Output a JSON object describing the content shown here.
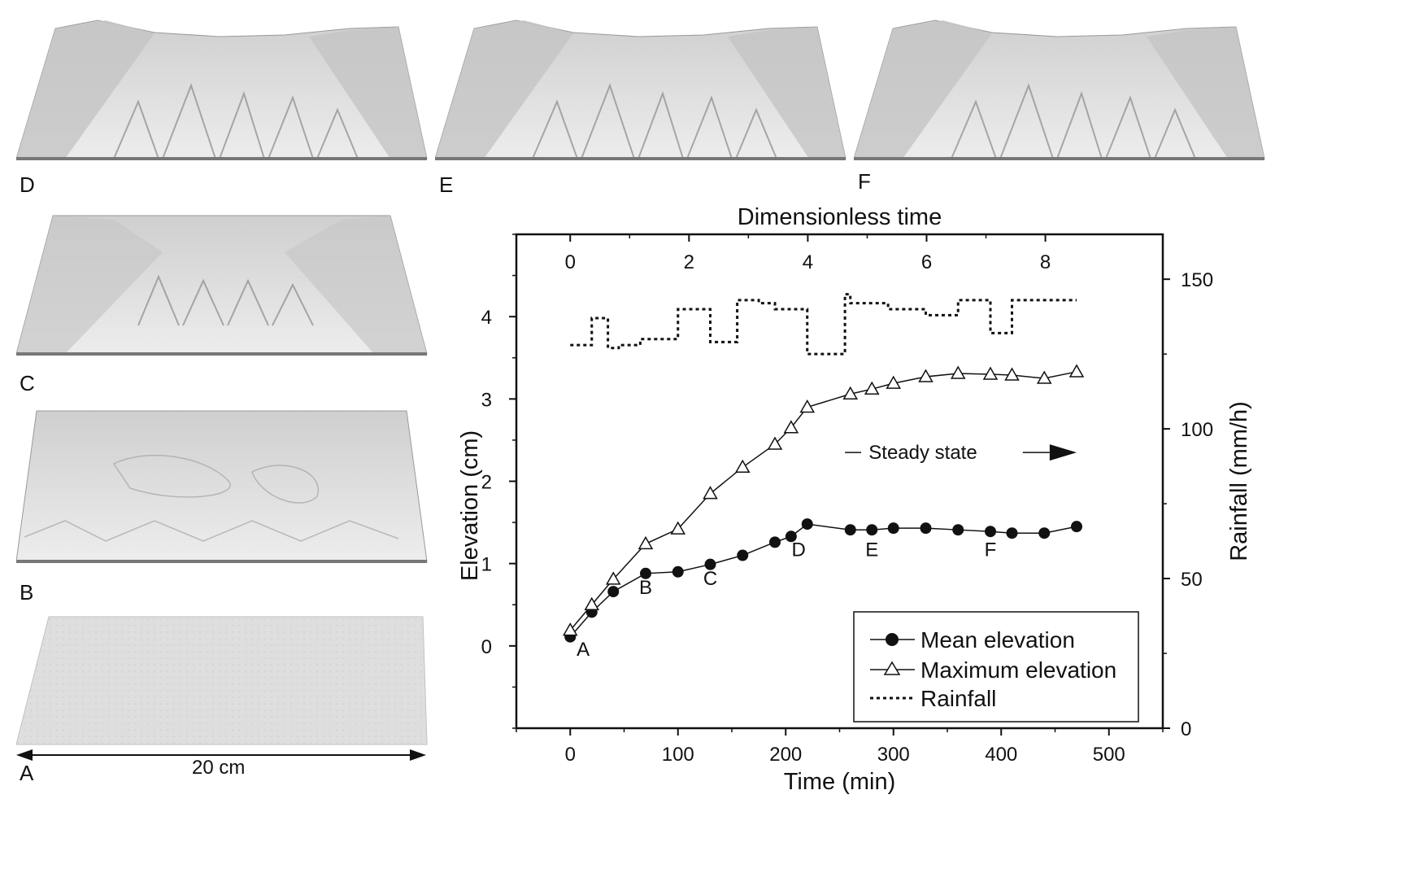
{
  "panels": {
    "labels": [
      "A",
      "B",
      "C",
      "D",
      "E",
      "F"
    ],
    "scale_bar": "20 cm"
  },
  "chart_data": {
    "type": "line",
    "title": "",
    "top_axis_label": "Dimensionless time",
    "top_ticks": [
      0,
      2,
      4,
      6,
      8
    ],
    "xlabel": "Time (min)",
    "ylabel": "Elevation (cm)",
    "y2label": "Rainfall (mm/h)",
    "xlim": [
      -50,
      550
    ],
    "ylim": [
      -1,
      5
    ],
    "y2lim": [
      0,
      165
    ],
    "xticks": [
      0,
      100,
      200,
      300,
      400,
      500
    ],
    "yticks": [
      0,
      1,
      2,
      3,
      4
    ],
    "y2ticks": [
      0,
      50,
      100,
      150
    ],
    "series": [
      {
        "name": "Mean elevation",
        "marker": "filled-circle",
        "x": [
          0,
          20,
          40,
          70,
          100,
          130,
          160,
          190,
          205,
          220,
          260,
          280,
          300,
          330,
          360,
          390,
          410,
          440,
          470
        ],
        "y": [
          0.11,
          0.41,
          0.66,
          0.88,
          0.9,
          0.99,
          1.1,
          1.26,
          1.33,
          1.48,
          1.41,
          1.41,
          1.43,
          1.43,
          1.41,
          1.39,
          1.37,
          1.37,
          1.45
        ]
      },
      {
        "name": "Maximum elevation",
        "marker": "open-triangle",
        "x": [
          0,
          20,
          40,
          70,
          100,
          130,
          160,
          190,
          205,
          220,
          260,
          280,
          300,
          330,
          360,
          390,
          410,
          440,
          470
        ],
        "y": [
          0.19,
          0.5,
          0.81,
          1.24,
          1.42,
          1.85,
          2.17,
          2.45,
          2.65,
          2.9,
          3.06,
          3.12,
          3.19,
          3.27,
          3.31,
          3.3,
          3.29,
          3.25,
          3.33
        ]
      },
      {
        "name": "Rainfall",
        "axis": "right",
        "style": "dotted-step",
        "x": [
          0,
          20,
          20,
          35,
          35,
          45,
          45,
          65,
          65,
          100,
          100,
          130,
          130,
          155,
          155,
          175,
          175,
          190,
          190,
          220,
          220,
          255,
          255,
          260,
          260,
          295,
          295,
          330,
          330,
          360,
          360,
          390,
          390,
          410,
          410,
          470
        ],
        "y": [
          128,
          128,
          137,
          137,
          127,
          127,
          128,
          128,
          130,
          130,
          140,
          140,
          129,
          129,
          143,
          143,
          142,
          142,
          140,
          140,
          125,
          125,
          145,
          145,
          142,
          142,
          140,
          140,
          138,
          138,
          143,
          143,
          132,
          132,
          143,
          143
        ]
      }
    ],
    "point_labels": [
      {
        "text": "A",
        "x": 12,
        "y": -0.12
      },
      {
        "text": "B",
        "x": 70,
        "y": 0.63
      },
      {
        "text": "C",
        "x": 130,
        "y": 0.74
      },
      {
        "text": "D",
        "x": 212,
        "y": 1.09
      },
      {
        "text": "E",
        "x": 280,
        "y": 1.09
      },
      {
        "text": "F",
        "x": 390,
        "y": 1.09
      }
    ],
    "annotation": {
      "text": "Steady state",
      "arrow": "right"
    },
    "legend": {
      "position": "bottom-right",
      "entries": [
        "Mean elevation",
        "Maximum elevation",
        "Rainfall"
      ]
    }
  }
}
